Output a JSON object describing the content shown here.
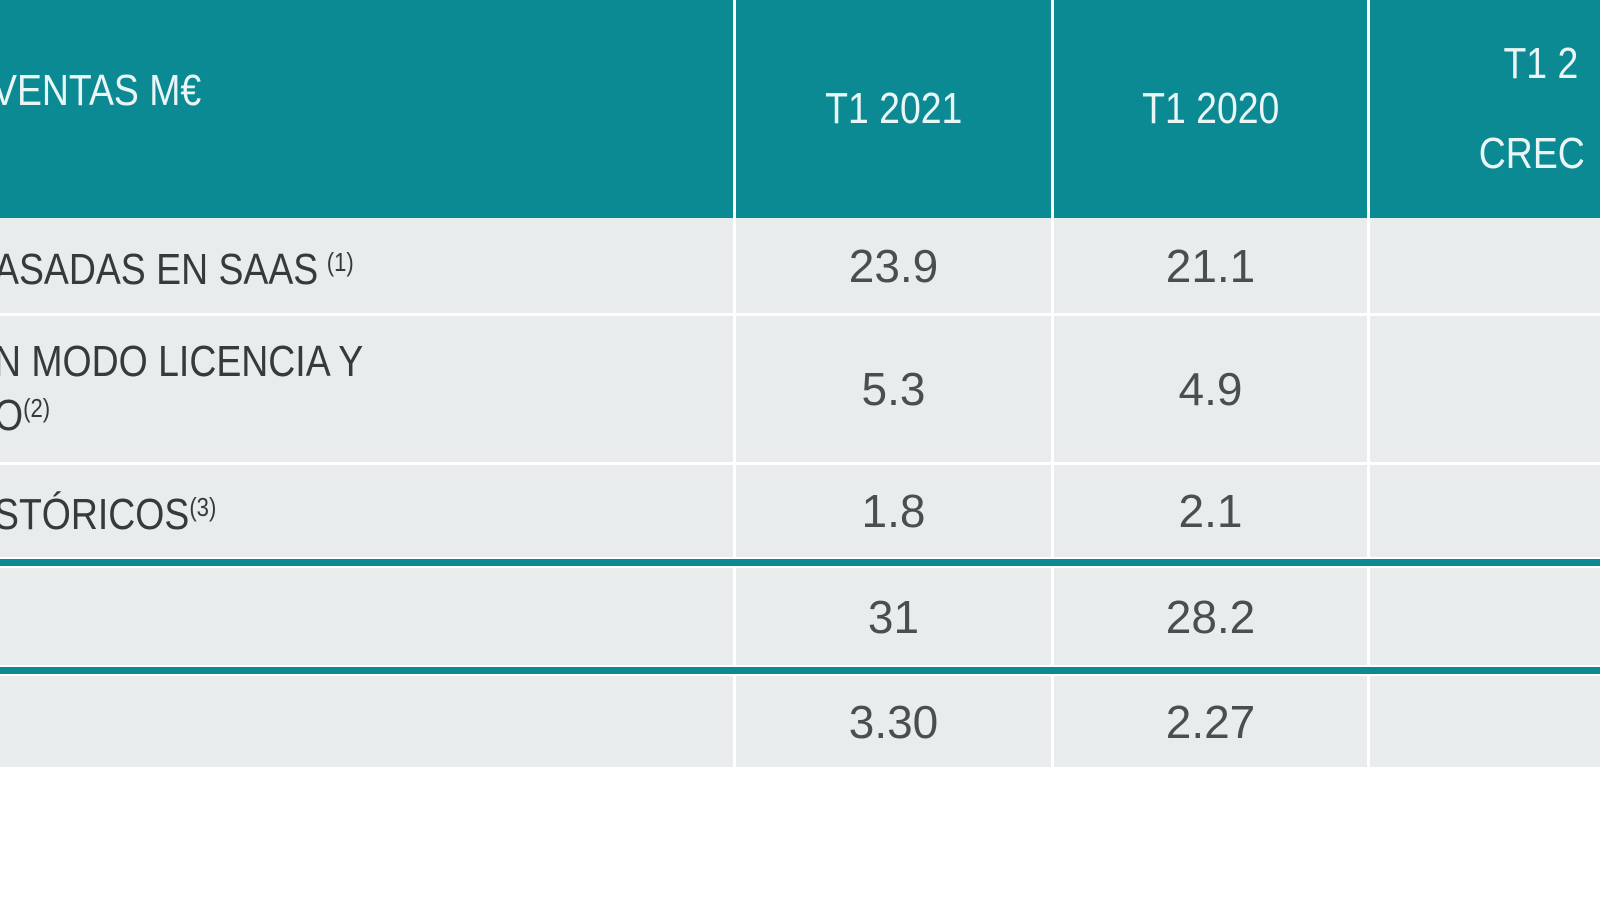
{
  "colors": {
    "teal_accent": "#0b8a94",
    "row_background": "#e8ecec",
    "header_text": "#eaf5f6",
    "label_text": "#363a3c",
    "value_text": "#4a4e51"
  },
  "header": {
    "sales_metric": "VENTAS M€",
    "t1_2021": "T1 2021",
    "t1_2020": "T1 2020",
    "growth_line1": "T1 2",
    "growth_line2": "CREC"
  },
  "rows": [
    {
      "label": "ASADAS EN SAAS",
      "footnote": "(1)",
      "t1_2021": "23.9",
      "t1_2020": "21.1"
    },
    {
      "label_line1": "N MODO LICENCIA Y",
      "label_line2": "O",
      "footnote": "(2)",
      "t1_2021": "5.3",
      "t1_2020": "4.9"
    },
    {
      "label": "STÓRICOS",
      "footnote": "(3)",
      "t1_2021": "1.8",
      "t1_2020": "2.1"
    },
    {
      "t1_2021": "31",
      "t1_2020": "28.2"
    },
    {
      "t1_2021": "3.30",
      "t1_2020": "2.27"
    }
  ]
}
